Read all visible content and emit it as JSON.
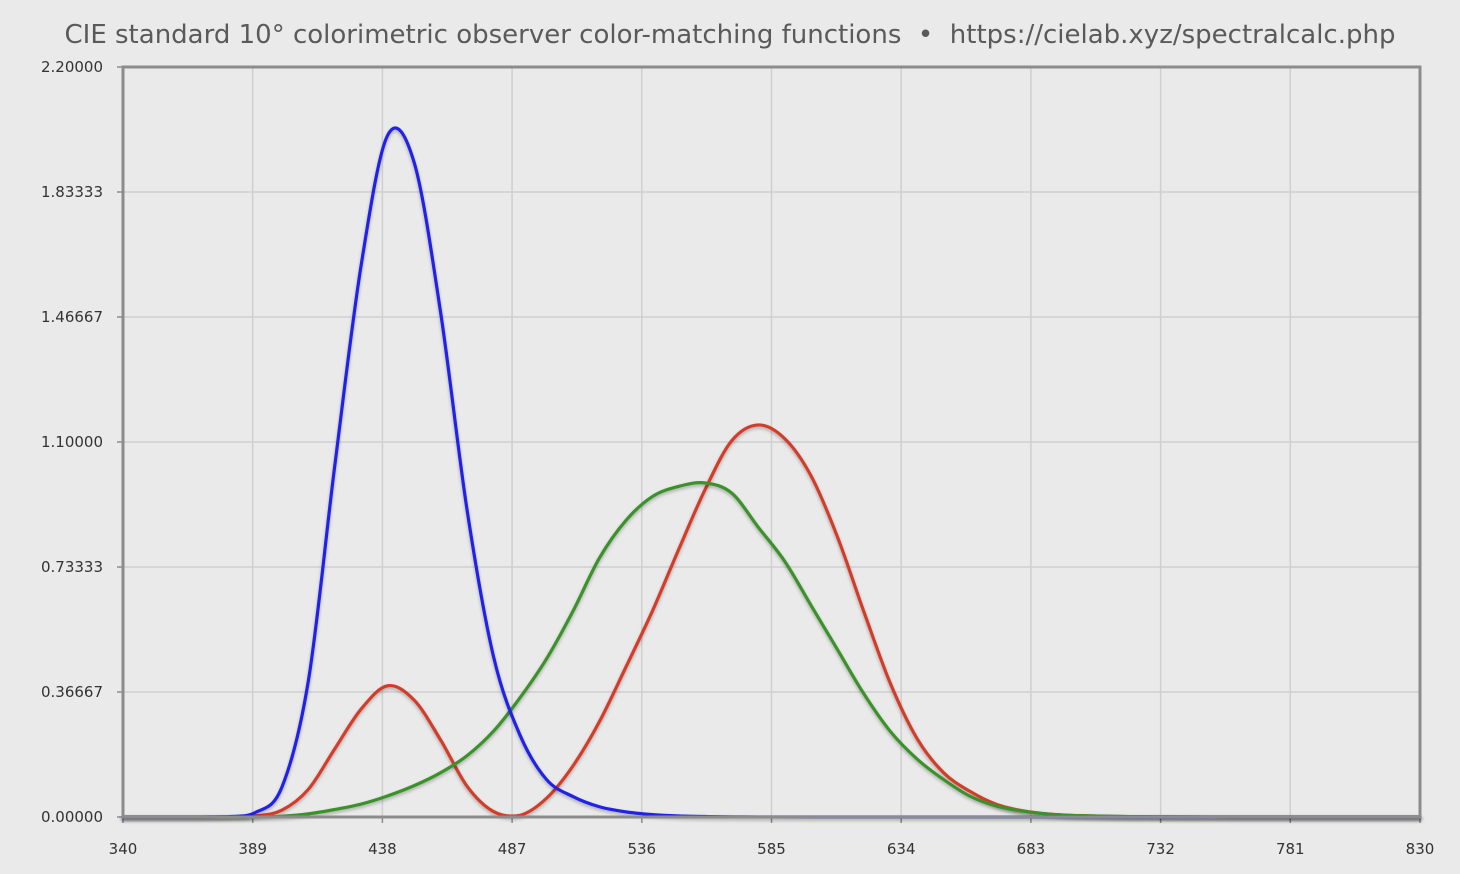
{
  "chart_data": {
    "type": "line",
    "title": "CIE standard 10° colorimetric observer color-matching functions",
    "url": "https://cielab.xyz/spectralcalc.php",
    "title_separator": "•",
    "xlabel": "",
    "ylabel": "",
    "xlim": [
      340,
      830
    ],
    "ylim": [
      0,
      2.2
    ],
    "x_ticks": [
      "340",
      "389",
      "438",
      "487",
      "536",
      "585",
      "634",
      "683",
      "732",
      "781",
      "830"
    ],
    "y_ticks": [
      "0.00000",
      "0.36667",
      "0.73333",
      "1.10000",
      "1.46667",
      "1.83333",
      "2.20000"
    ],
    "grid": true,
    "legend": "none",
    "series": [
      {
        "color": "#d23c2a",
        "x": [
          340,
          360,
          380,
          390,
          400,
          410,
          420,
          430,
          440,
          450,
          460,
          470,
          480,
          490,
          500,
          510,
          520,
          530,
          540,
          550,
          560,
          570,
          580,
          590,
          600,
          610,
          620,
          630,
          640,
          650,
          660,
          670,
          680,
          690,
          700,
          720,
          740,
          760,
          780,
          830
        ],
        "y": [
          0.0,
          0.0,
          0.0003,
          0.00295,
          0.02,
          0.081,
          0.2,
          0.317,
          0.385,
          0.343,
          0.226,
          0.09,
          0.016,
          0.005,
          0.055,
          0.15,
          0.28,
          0.44,
          0.604,
          0.786,
          0.962,
          1.104,
          1.15,
          1.11,
          1.0,
          0.82,
          0.6,
          0.39,
          0.23,
          0.13,
          0.075,
          0.037,
          0.018,
          0.0085,
          0.004,
          0.001,
          0.0003,
          0.0001,
          0.0,
          0.0
        ]
      },
      {
        "color": "#3a922a",
        "x": [
          340,
          360,
          380,
          390,
          400,
          410,
          420,
          430,
          440,
          450,
          460,
          470,
          480,
          490,
          500,
          510,
          520,
          530,
          540,
          550,
          560,
          570,
          580,
          590,
          600,
          610,
          620,
          630,
          640,
          650,
          660,
          670,
          680,
          690,
          700,
          720,
          740,
          760,
          780,
          830
        ],
        "y": [
          0.0,
          0.0,
          0.0,
          0.0003,
          0.0022,
          0.0092,
          0.022,
          0.038,
          0.062,
          0.092,
          0.13,
          0.18,
          0.252,
          0.35,
          0.464,
          0.604,
          0.76,
          0.87,
          0.94,
          0.97,
          0.98,
          0.95,
          0.85,
          0.75,
          0.62,
          0.49,
          0.36,
          0.25,
          0.17,
          0.11,
          0.061,
          0.032,
          0.017,
          0.008,
          0.004,
          0.001,
          0.0003,
          0.0001,
          0.0,
          0.0
        ]
      },
      {
        "color": "#2222e6",
        "x": [
          340,
          360,
          380,
          390,
          400,
          410,
          420,
          430,
          440,
          450,
          460,
          470,
          480,
          490,
          500,
          510,
          520,
          530,
          540,
          550,
          560,
          570,
          580,
          600,
          650,
          700,
          830
        ],
        "y": [
          0.0,
          0.0,
          0.0012,
          0.0131,
          0.087,
          0.398,
          1.03,
          1.62,
          2.0,
          1.92,
          1.48,
          0.9,
          0.47,
          0.24,
          0.11,
          0.06,
          0.03,
          0.015,
          0.007,
          0.003,
          0.0014,
          0.0006,
          0.0002,
          0.0,
          0.0,
          0.0,
          0.0
        ]
      }
    ]
  }
}
